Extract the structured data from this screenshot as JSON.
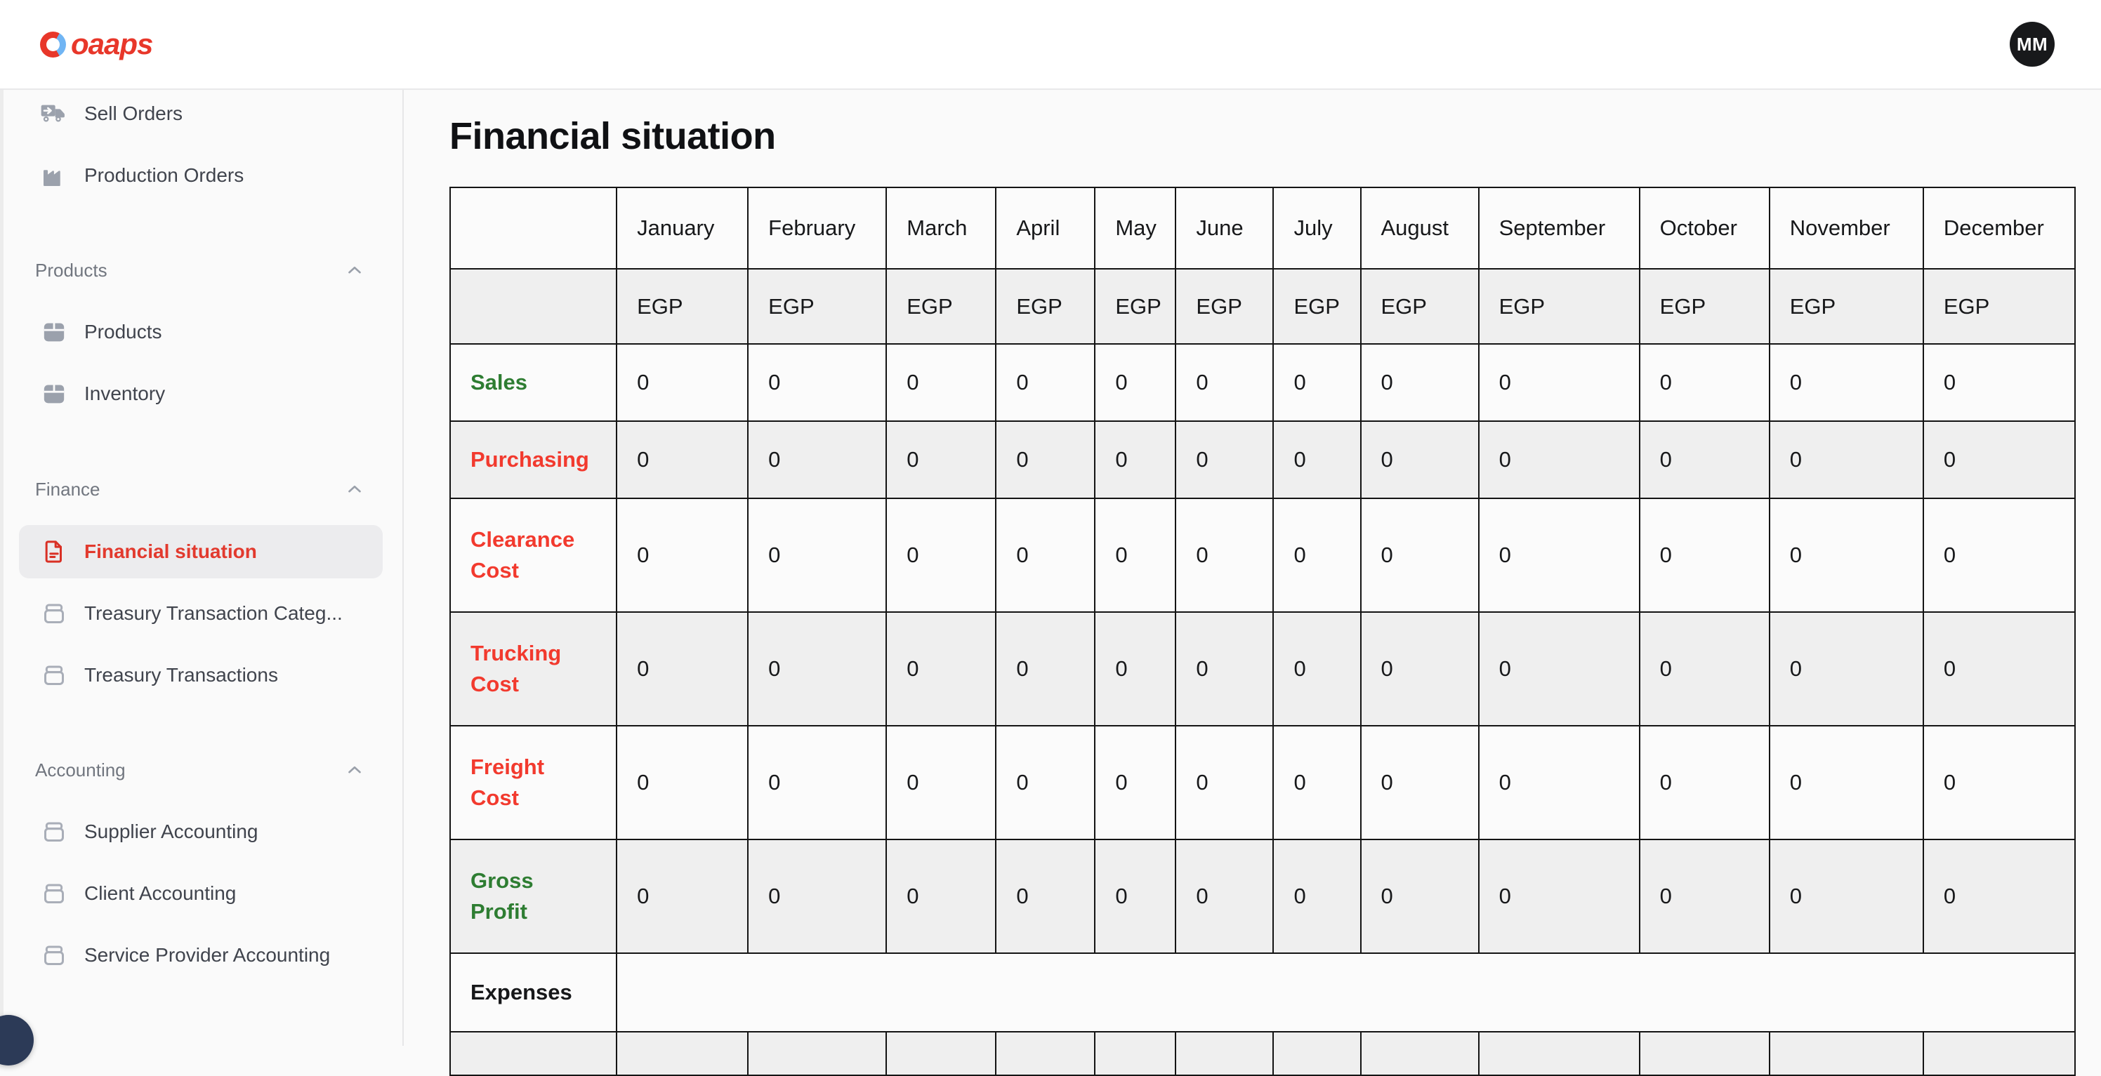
{
  "header": {
    "logo_text": "oaaps",
    "avatar_initials": "MM"
  },
  "sidebar": {
    "items_top": [
      {
        "label": "Sell Orders",
        "icon": "truck-icon"
      },
      {
        "label": "Production Orders",
        "icon": "factory-icon"
      }
    ],
    "sections": [
      {
        "title": "Products",
        "items": [
          {
            "label": "Products",
            "icon": "box-icon"
          },
          {
            "label": "Inventory",
            "icon": "box-icon"
          }
        ]
      },
      {
        "title": "Finance",
        "items": [
          {
            "label": "Financial situation",
            "icon": "document-icon",
            "active": true
          },
          {
            "label": "Treasury Transaction Categ...",
            "icon": "archive-icon"
          },
          {
            "label": "Treasury Transactions",
            "icon": "archive-icon"
          }
        ]
      },
      {
        "title": "Accounting",
        "items": [
          {
            "label": "Supplier Accounting",
            "icon": "archive-icon"
          },
          {
            "label": "Client Accounting",
            "icon": "archive-icon"
          },
          {
            "label": "Service Provider Accounting",
            "icon": "archive-icon"
          }
        ]
      }
    ]
  },
  "main": {
    "title": "Financial situation",
    "table": {
      "months": [
        "January",
        "February",
        "March",
        "April",
        "May",
        "June",
        "July",
        "August",
        "September",
        "October",
        "November",
        "December"
      ],
      "currency_row": [
        "EGP",
        "EGP",
        "EGP",
        "EGP",
        "EGP",
        "EGP",
        "EGP",
        "EGP",
        "EGP",
        "EGP",
        "EGP",
        "EGP"
      ],
      "rows": [
        {
          "label": "Sales",
          "color": "#2e7d32",
          "lines": 1,
          "type": "data",
          "values": [
            "0",
            "0",
            "0",
            "0",
            "0",
            "0",
            "0",
            "0",
            "0",
            "0",
            "0",
            "0"
          ]
        },
        {
          "label": "Purchasing",
          "color": "#f23a2e",
          "lines": 1,
          "type": "data",
          "values": [
            "0",
            "0",
            "0",
            "0",
            "0",
            "0",
            "0",
            "0",
            "0",
            "0",
            "0",
            "0"
          ]
        },
        {
          "label": "Clearance Cost",
          "color": "#f23a2e",
          "lines": 2,
          "type": "data",
          "values": [
            "0",
            "0",
            "0",
            "0",
            "0",
            "0",
            "0",
            "0",
            "0",
            "0",
            "0",
            "0"
          ]
        },
        {
          "label": "Trucking Cost",
          "color": "#f23a2e",
          "lines": 2,
          "type": "data",
          "values": [
            "0",
            "0",
            "0",
            "0",
            "0",
            "0",
            "0",
            "0",
            "0",
            "0",
            "0",
            "0"
          ]
        },
        {
          "label": "Freight Cost",
          "color": "#f23a2e",
          "lines": 2,
          "type": "data",
          "values": [
            "0",
            "0",
            "0",
            "0",
            "0",
            "0",
            "0",
            "0",
            "0",
            "0",
            "0",
            "0"
          ]
        },
        {
          "label": "Gross Profit",
          "color": "#2e7d32",
          "lines": 2,
          "type": "data",
          "values": [
            "0",
            "0",
            "0",
            "0",
            "0",
            "0",
            "0",
            "0",
            "0",
            "0",
            "0",
            "0"
          ]
        },
        {
          "label": "Expenses",
          "color": "#17181a",
          "lines": 1,
          "type": "section"
        },
        {
          "type": "partial"
        }
      ]
    }
  },
  "colors": {
    "brand_red": "#e8372a",
    "brand_blue": "#70b5f4",
    "active_red": "#e23a2e",
    "positive_green": "#2e7d32",
    "negative_red": "#f23a2e",
    "table_border": "#141414",
    "row_stripe": "#efefef"
  }
}
